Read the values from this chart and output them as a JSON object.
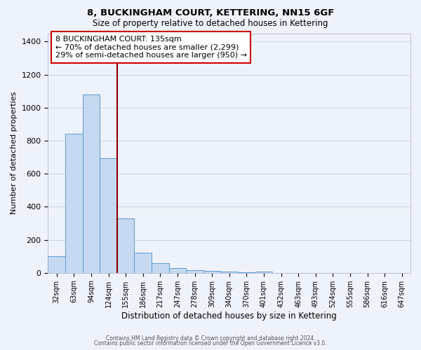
{
  "title1": "8, BUCKINGHAM COURT, KETTERING, NN15 6GF",
  "title2": "Size of property relative to detached houses in Kettering",
  "xlabel": "Distribution of detached houses by size in Kettering",
  "ylabel": "Number of detached properties",
  "bar_labels": [
    "32sqm",
    "63sqm",
    "94sqm",
    "124sqm",
    "155sqm",
    "186sqm",
    "217sqm",
    "247sqm",
    "278sqm",
    "309sqm",
    "340sqm",
    "370sqm",
    "401sqm",
    "432sqm",
    "463sqm",
    "493sqm",
    "524sqm",
    "555sqm",
    "586sqm",
    "616sqm",
    "647sqm"
  ],
  "bar_values": [
    100,
    840,
    1080,
    695,
    330,
    120,
    60,
    30,
    15,
    10,
    8,
    5,
    8,
    0,
    0,
    0,
    0,
    0,
    0,
    0,
    0
  ],
  "bar_color": "#c6d9f0",
  "bar_edge_color": "#5b9bd5",
  "vline_color": "#8B0000",
  "ylim": [
    0,
    1450
  ],
  "yticks": [
    0,
    200,
    400,
    600,
    800,
    1000,
    1200,
    1400
  ],
  "annotation_lines": [
    "8 BUCKINGHAM COURT: 135sqm",
    "← 70% of detached houses are smaller (2,299)",
    "29% of semi-detached houses are larger (950) →"
  ],
  "bg_color": "#eef2fa",
  "grid_color": "#d0d8e8",
  "footer1": "Contains HM Land Registry data © Crown copyright and database right 2024.",
  "footer2": "Contains public sector information licensed under the Open Government Licence v3.0."
}
